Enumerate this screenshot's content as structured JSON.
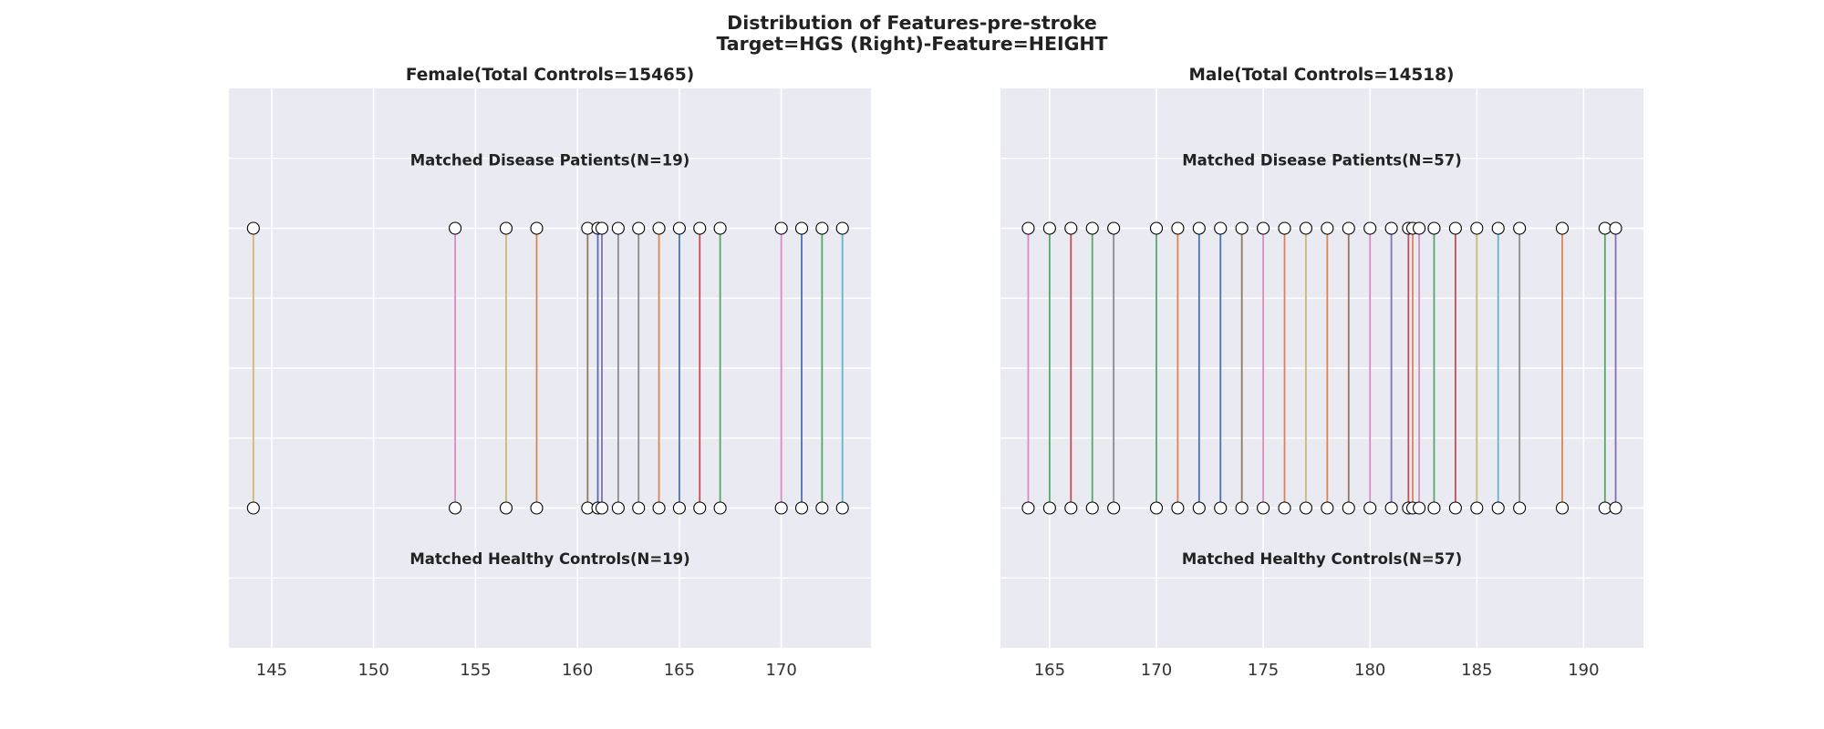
{
  "figure_title_line1": "Distribution of Features-pre-stroke",
  "figure_title_line2": "Target=HGS (Right)-Feature=HEIGHT",
  "chart_data": [
    {
      "type": "scatter",
      "title": "Female(Total Controls=15465)",
      "top_group_label": "Matched Disease Patients(N=19)",
      "bottom_group_label": "Matched Healthy Controls(N=19)",
      "xlim": [
        142.9,
        174.4
      ],
      "ylim": [
        -1,
        3
      ],
      "y_top": 2,
      "y_bottom": 0,
      "xticks": [
        145,
        150,
        155,
        160,
        165,
        170
      ],
      "grid": true,
      "pairs": [
        {
          "x": 144.1,
          "color": "#CCB974"
        },
        {
          "x": 154.0,
          "color": "#DA8BC3"
        },
        {
          "x": 156.5,
          "color": "#CCB974"
        },
        {
          "x": 158.0,
          "color": "#DD8452"
        },
        {
          "x": 160.5,
          "color": "#937860"
        },
        {
          "x": 161.0,
          "color": "#4C72B0"
        },
        {
          "x": 161.2,
          "color": "#8172B3"
        },
        {
          "x": 162.0,
          "color": "#8C8C8C"
        },
        {
          "x": 163.0,
          "color": "#8C8C8C"
        },
        {
          "x": 164.0,
          "color": "#DD8452"
        },
        {
          "x": 165.0,
          "color": "#4C72B0"
        },
        {
          "x": 166.0,
          "color": "#C44E52"
        },
        {
          "x": 167.0,
          "color": "#55A868"
        },
        {
          "x": 170.0,
          "color": "#DA8BC3"
        },
        {
          "x": 171.0,
          "color": "#4C72B0"
        },
        {
          "x": 172.0,
          "color": "#55A868"
        },
        {
          "x": 173.0,
          "color": "#64B5CD"
        }
      ]
    },
    {
      "type": "scatter",
      "title": "Male(Total Controls=14518)",
      "top_group_label": "Matched Disease Patients(N=57)",
      "bottom_group_label": "Matched Healthy Controls(N=57)",
      "xlim": [
        162.7,
        192.8
      ],
      "ylim": [
        -1,
        3
      ],
      "y_top": 2,
      "y_bottom": 0,
      "xticks": [
        165,
        170,
        175,
        180,
        185,
        190
      ],
      "grid": true,
      "pairs": [
        {
          "x": 164.0,
          "color": "#DA8BC3"
        },
        {
          "x": 165.0,
          "color": "#55A868"
        },
        {
          "x": 166.0,
          "color": "#C44E52"
        },
        {
          "x": 167.0,
          "color": "#55A868"
        },
        {
          "x": 168.0,
          "color": "#8C8C8C"
        },
        {
          "x": 170.0,
          "color": "#55A868"
        },
        {
          "x": 171.0,
          "color": "#DD8452"
        },
        {
          "x": 172.0,
          "color": "#4C72B0"
        },
        {
          "x": 173.0,
          "color": "#4C72B0"
        },
        {
          "x": 174.0,
          "color": "#937860"
        },
        {
          "x": 175.0,
          "color": "#DA8BC3"
        },
        {
          "x": 176.0,
          "color": "#DD8452"
        },
        {
          "x": 177.0,
          "color": "#CCB974"
        },
        {
          "x": 178.0,
          "color": "#DD8452"
        },
        {
          "x": 179.0,
          "color": "#937860"
        },
        {
          "x": 180.0,
          "color": "#DA8BC3"
        },
        {
          "x": 181.0,
          "color": "#8172B3"
        },
        {
          "x": 181.8,
          "color": "#C44E52"
        },
        {
          "x": 182.0,
          "color": "#DD8452"
        },
        {
          "x": 182.3,
          "color": "#DA8BC3"
        },
        {
          "x": 183.0,
          "color": "#55A868"
        },
        {
          "x": 184.0,
          "color": "#C44E52"
        },
        {
          "x": 185.0,
          "color": "#CCB974"
        },
        {
          "x": 186.0,
          "color": "#64B5CD"
        },
        {
          "x": 187.0,
          "color": "#8C8C8C"
        },
        {
          "x": 189.0,
          "color": "#DD8452"
        },
        {
          "x": 191.0,
          "color": "#55A868"
        },
        {
          "x": 191.5,
          "color": "#8172B3"
        }
      ]
    }
  ]
}
